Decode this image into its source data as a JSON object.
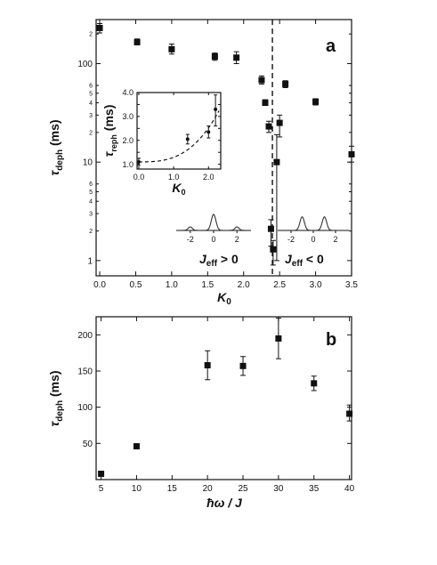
{
  "chart_data": [
    {
      "id": "a",
      "type": "scatter",
      "panel_label": "a",
      "xlabel": "K_0",
      "ylabel": "τ_deph (ms)",
      "x_scale": "linear",
      "y_scale": "log",
      "xlim": [
        -0.05,
        3.5
      ],
      "ylim": [
        0.7,
        280
      ],
      "x_ticks": [
        0.0,
        0.5,
        1.0,
        1.5,
        2.0,
        2.5,
        3.0,
        3.5
      ],
      "x_tick_labels": [
        "0.0",
        "0.5",
        "1.0",
        "1.5",
        "2.0",
        "2.5",
        "3.0",
        "3.5"
      ],
      "y_ticks": [
        1,
        10,
        100
      ],
      "y_tick_labels": [
        "1",
        "10",
        "100"
      ],
      "y_minor_labels": [
        {
          "v": 2,
          "t": "2"
        },
        {
          "v": 3,
          "t": "3"
        },
        {
          "v": 4,
          "t": "4"
        },
        {
          "v": 5,
          "t": "5"
        },
        {
          "v": 6,
          "t": "6"
        },
        {
          "v": 20,
          "t": "2"
        },
        {
          "v": 30,
          "t": "3"
        },
        {
          "v": 40,
          "t": "4"
        },
        {
          "v": 50,
          "t": "5"
        },
        {
          "v": 60,
          "t": "6"
        },
        {
          "v": 200,
          "t": "2"
        }
      ],
      "points": [
        {
          "x": 0.0,
          "y": 230,
          "lo": 205,
          "hi": 255
        },
        {
          "x": 0.52,
          "y": 165,
          "lo": 155,
          "hi": 178
        },
        {
          "x": 1.0,
          "y": 140,
          "lo": 125,
          "hi": 158
        },
        {
          "x": 1.6,
          "y": 118,
          "lo": 108,
          "hi": 128
        },
        {
          "x": 1.9,
          "y": 115,
          "lo": 100,
          "hi": 132
        },
        {
          "x": 2.25,
          "y": 68,
          "lo": 62,
          "hi": 75
        },
        {
          "x": 2.3,
          "y": 40,
          "lo": 38,
          "hi": 43
        },
        {
          "x": 2.35,
          "y": 23,
          "lo": 20,
          "hi": 26
        },
        {
          "x": 2.38,
          "y": 2.1,
          "lo": 1.4,
          "hi": 2.6
        },
        {
          "x": 2.41,
          "y": 1.3,
          "lo": 0.9,
          "hi": 1.6
        },
        {
          "x": 2.46,
          "y": 10,
          "lo": 1.0,
          "hi": 19
        },
        {
          "x": 2.5,
          "y": 25,
          "lo": 18,
          "hi": 30
        },
        {
          "x": 2.58,
          "y": 62,
          "lo": 57,
          "hi": 67
        },
        {
          "x": 3.0,
          "y": 41,
          "lo": 38,
          "hi": 44
        },
        {
          "x": 3.5,
          "y": 12,
          "lo": 10,
          "hi": 14.5
        }
      ],
      "vline_x": 2.4,
      "region_labels": {
        "left": "J_eff > 0",
        "right": "J_eff < 0"
      },
      "inset": {
        "xlabel": "K_0",
        "ylabel": "τ_reph (ms)",
        "xlim": [
          -0.05,
          2.35
        ],
        "ylim": [
          0.8,
          4.0
        ],
        "x_ticks": [
          0.0,
          1.0,
          2.0
        ],
        "x_tick_labels": [
          "0.0",
          "1.0",
          "2.0"
        ],
        "y_ticks": [
          1.0,
          1.5,
          2.0,
          2.5,
          3.0,
          3.5,
          4.0
        ],
        "y_tick_labels": [
          "1.0",
          "",
          "2.0",
          "",
          "3.0",
          "",
          "4.0"
        ],
        "points": [
          {
            "x": 0.0,
            "y": 1.1,
            "lo": 0.95,
            "hi": 1.25
          },
          {
            "x": 1.4,
            "y": 2.05,
            "lo": 1.85,
            "hi": 2.25
          },
          {
            "x": 2.0,
            "y": 2.35,
            "lo": 2.1,
            "hi": 2.6
          },
          {
            "x": 2.2,
            "y": 3.3,
            "lo": 2.6,
            "hi": 3.9
          }
        ],
        "fit_curve": {
          "x_start": 0.0,
          "x_end": 2.3,
          "y0": 1.1,
          "k": 1.05,
          "p": 2.9
        }
      },
      "profiles": {
        "left": {
          "tick_labels": [
            "-2",
            "0",
            "2"
          ],
          "tick_values": [
            -2,
            0,
            2
          ],
          "xlim": [
            -3.2,
            3.2
          ],
          "peaks": [
            {
              "c": 0,
              "a": 1.0,
              "w": 0.2
            },
            {
              "c": -2,
              "a": 0.22,
              "w": 0.18
            },
            {
              "c": 2,
              "a": 0.22,
              "w": 0.18
            }
          ]
        },
        "right": {
          "tick_labels": [
            "-2",
            "0",
            "2"
          ],
          "tick_values": [
            -2,
            0,
            2
          ],
          "xlim": [
            -3.2,
            3.2
          ],
          "peaks": [
            {
              "c": -1,
              "a": 0.85,
              "w": 0.2
            },
            {
              "c": 1,
              "a": 0.85,
              "w": 0.2
            }
          ]
        }
      }
    },
    {
      "id": "b",
      "type": "scatter",
      "panel_label": "b",
      "xlabel": "ħω / J",
      "ylabel": "τ_deph (ms)",
      "x_scale": "linear",
      "y_scale": "linear",
      "xlim": [
        4.3,
        40.3
      ],
      "ylim": [
        0,
        225
      ],
      "x_ticks": [
        5,
        10,
        15,
        20,
        25,
        30,
        35,
        40
      ],
      "x_tick_labels": [
        "5",
        "10",
        "15",
        "20",
        "25",
        "30",
        "35",
        "40"
      ],
      "y_ticks": [
        50,
        100,
        150,
        200
      ],
      "y_tick_labels": [
        "50",
        "100",
        "150",
        "200"
      ],
      "points": [
        {
          "x": 5,
          "y": 8,
          "lo": 6,
          "hi": 10
        },
        {
          "x": 10,
          "y": 46,
          "lo": 43,
          "hi": 49
        },
        {
          "x": 20,
          "y": 158,
          "lo": 138,
          "hi": 178
        },
        {
          "x": 25,
          "y": 157,
          "lo": 144,
          "hi": 170
        },
        {
          "x": 30,
          "y": 195,
          "lo": 167,
          "hi": 223
        },
        {
          "x": 35,
          "y": 133,
          "lo": 123,
          "hi": 143
        },
        {
          "x": 40,
          "y": 91,
          "lo": 81,
          "hi": 103
        }
      ]
    }
  ]
}
